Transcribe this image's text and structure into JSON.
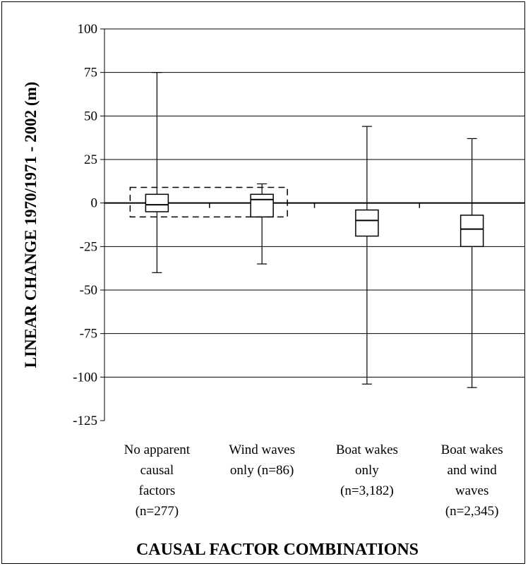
{
  "chart_data": {
    "type": "box",
    "xlabel": "CAUSAL FACTOR COMBINATIONS",
    "ylabel": "LINEAR CHANGE 1970/1971 - 2002 (m)",
    "ylim": [
      -125,
      100
    ],
    "yticks": [
      100,
      75,
      50,
      25,
      0,
      -25,
      -50,
      -75,
      -100,
      -125
    ],
    "grid": true,
    "categories": [
      {
        "label_lines": [
          "No apparent",
          "causal",
          "factors",
          "(n=277)"
        ],
        "min": -40,
        "q1": -5,
        "median": -1,
        "q3": 5,
        "max": 75
      },
      {
        "label_lines": [
          "Wind waves",
          "only (n=86)"
        ],
        "min": -35,
        "q1": -8,
        "median": 2,
        "q3": 5,
        "max": 11
      },
      {
        "label_lines": [
          "Boat wakes",
          "only",
          "(n=3,182)"
        ],
        "min": -104,
        "q1": -19,
        "median": -10,
        "q3": -4,
        "max": 44
      },
      {
        "label_lines": [
          "Boat wakes",
          "and wind",
          "waves",
          "(n=2,345)"
        ],
        "min": -106,
        "q1": -25,
        "median": -15,
        "q3": -7,
        "max": 37
      }
    ],
    "highlight_box": {
      "style": "dashed",
      "categories": [
        0,
        1
      ],
      "ymin": -8,
      "ymax": 9
    }
  }
}
